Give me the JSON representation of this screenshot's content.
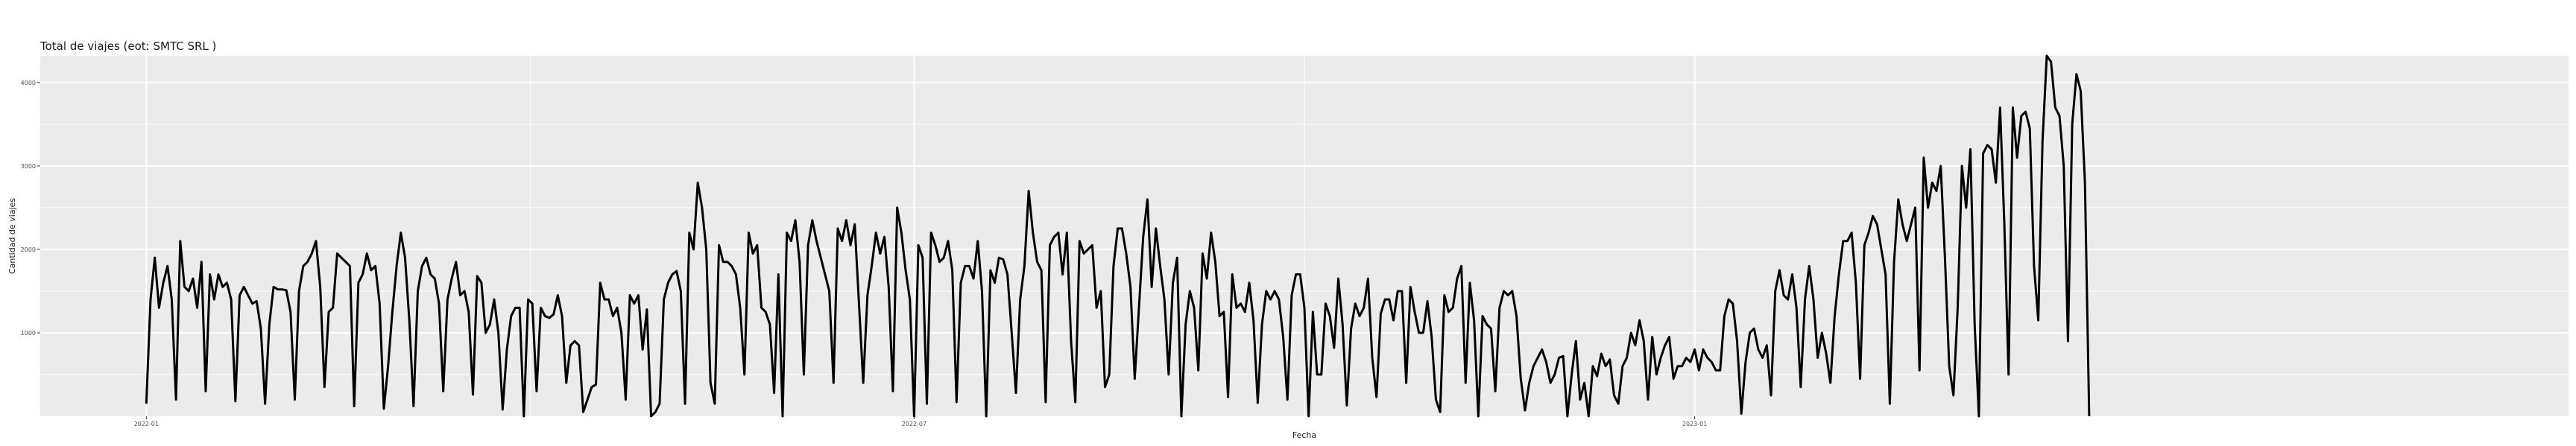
{
  "chart_data": {
    "type": "line",
    "title": "Total de viajes (eot: SMTC SRL )",
    "xlabel": "Fecha",
    "ylabel": "Cantidad de viajes",
    "x_start": "2022-01-01",
    "x_range": [
      "2021-12-07",
      "2023-07-26"
    ],
    "xticks": [
      {
        "date": "2022-01-01",
        "label": "2022-01"
      },
      {
        "date": "2022-07-01",
        "label": "2022-07"
      },
      {
        "date": "2023-01-01",
        "label": "2023-01"
      }
    ],
    "yticks": [
      1000,
      2000,
      3000,
      4000
    ],
    "ylim": [
      0,
      4320
    ],
    "grid": true,
    "colors": {
      "panel": "#ebebeb",
      "grid": "#ffffff",
      "line": "#000000"
    },
    "series": [
      {
        "values": [
          150,
          1400,
          1900,
          1300,
          1600,
          1800,
          1400,
          200,
          2100,
          1550,
          1500,
          1650,
          1300,
          1850,
          300,
          1700,
          1400,
          1700,
          1550,
          1600,
          1400,
          180,
          1450,
          1550,
          1450,
          1350,
          1380,
          1050,
          150,
          1100,
          1550,
          1520,
          1520,
          1510,
          1250,
          200,
          1500,
          1800,
          1850,
          1950,
          2100,
          1550,
          350,
          1250,
          1300,
          1950,
          1900,
          1850,
          1800,
          120,
          1600,
          1700,
          1950,
          1750,
          1800,
          1350,
          90,
          600,
          1250,
          1800,
          2200,
          1900,
          1150,
          120,
          1500,
          1800,
          1900,
          1700,
          1650,
          1350,
          300,
          1400,
          1650,
          1850,
          1450,
          1500,
          1250,
          260,
          1680,
          1600,
          1000,
          1100,
          1400,
          1000,
          80,
          800,
          1200,
          1300,
          1300,
          0,
          1400,
          1350,
          300,
          1300,
          1200,
          1180,
          1220,
          1450,
          1200,
          400,
          850,
          900,
          850,
          50,
          200,
          350,
          380,
          1600,
          1400,
          1400,
          1200,
          1300,
          1000,
          200,
          1450,
          1350,
          1450,
          800,
          1280,
          0,
          50,
          150,
          1400,
          1600,
          1700,
          1740,
          1500,
          150,
          2200,
          2000,
          2800,
          2500,
          2000,
          400,
          150,
          2050,
          1850,
          1850,
          1800,
          1700,
          1300,
          500,
          2200,
          1950,
          2050,
          1300,
          1250,
          1100,
          280,
          1700,
          0,
          2200,
          2100,
          2350,
          1850,
          500,
          2050,
          2350,
          2100,
          1900,
          1700,
          1500,
          400,
          2250,
          2100,
          2350,
          2050,
          2300,
          1350,
          400,
          1450,
          1800,
          2200,
          1950,
          2150,
          1550,
          300,
          2500,
          2200,
          1750,
          1400,
          0,
          2050,
          1900,
          150,
          2200,
          2050,
          1850,
          1900,
          2100,
          1750,
          170,
          1600,
          1800,
          1800,
          1650,
          2100,
          1500,
          0,
          1750,
          1600,
          1900,
          1880,
          1700,
          1000,
          280,
          1400,
          1800,
          2700,
          2200,
          1850,
          1750,
          170,
          2050,
          2150,
          2200,
          1700,
          2200,
          900,
          170,
          2100,
          1950,
          2000,
          2050,
          1300,
          1500,
          350,
          500,
          1800,
          2250,
          2250,
          1950,
          1550,
          450,
          1300,
          2150,
          2600,
          1550,
          2250,
          1800,
          1400,
          500,
          1600,
          1900,
          0,
          1100,
          1500,
          1300,
          550,
          1950,
          1650,
          2200,
          1850,
          1200,
          1250,
          230,
          1700,
          1300,
          1350,
          1250,
          1600,
          1150,
          160,
          1100,
          1500,
          1400,
          1500,
          1400,
          950,
          200,
          1450,
          1700,
          1700,
          1300,
          0,
          1250,
          500,
          500,
          1350,
          1200,
          820,
          1650,
          1100,
          130,
          1050,
          1350,
          1200,
          1300,
          1650,
          700,
          230,
          1230,
          1400,
          1400,
          1150,
          1500,
          1500,
          400,
          1550,
          1250,
          1000,
          1000,
          1380,
          950,
          200,
          50,
          1450,
          1250,
          1300,
          1650,
          1800,
          400,
          1600,
          1150,
          0,
          1200,
          1100,
          1050,
          300,
          1300,
          1500,
          1450,
          1500,
          1200,
          450,
          70,
          400,
          600,
          700,
          800,
          650,
          400,
          500,
          700,
          720,
          0,
          500,
          900,
          200,
          400,
          0,
          600,
          480,
          750,
          600,
          680,
          250,
          150,
          600,
          700,
          1000,
          850,
          1150,
          900,
          200,
          950,
          500,
          700,
          850,
          950,
          450,
          600,
          600,
          700,
          650,
          800,
          550,
          800,
          700,
          650,
          550,
          550,
          1200,
          1400,
          1350,
          900,
          30,
          650,
          1000,
          1050,
          800,
          700,
          850,
          250,
          1500,
          1750,
          1450,
          1400,
          1700,
          1300,
          350,
          1400,
          1800,
          1400,
          700,
          1000,
          750,
          400,
          1200,
          1700,
          2100,
          2100,
          2200,
          1600,
          450,
          2050,
          2200,
          2400,
          2300,
          2000,
          1700,
          150,
          1850,
          2600,
          2300,
          2100,
          2300,
          2500,
          550,
          3100,
          2500,
          2800,
          2700,
          3000,
          1900,
          600,
          250,
          1300,
          3000,
          2500,
          3200,
          1100,
          0,
          3150,
          3250,
          3200,
          2800,
          3700,
          2300,
          500,
          3700,
          3100,
          3600,
          3650,
          3450,
          1800,
          1150,
          3300,
          4320,
          4250,
          3700,
          3600,
          3000,
          900,
          3500,
          4100,
          3900,
          2800,
          0
        ]
      }
    ]
  }
}
